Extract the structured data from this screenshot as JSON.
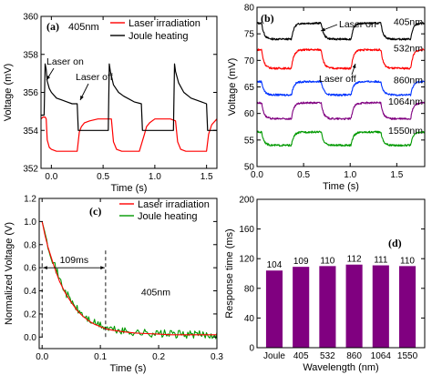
{
  "colors": {
    "black": "#000000",
    "red": "#ff0000",
    "blue": "#0033ff",
    "purple": "#800080",
    "green": "#009900",
    "bar": "#800080"
  },
  "chart_data": [
    {
      "panel": "(a)",
      "type": "line",
      "title": "",
      "xlabel": "Time (s)",
      "ylabel": "Voltage (mV)",
      "xlim": [
        -0.1,
        1.6
      ],
      "ylim": [
        352,
        360
      ],
      "xticks": [
        0.0,
        0.5,
        1.0,
        1.5
      ],
      "xtick_labels": [
        "0.0",
        "0.5",
        "1.0",
        "1.5"
      ],
      "yticks": [
        352,
        354,
        356,
        358,
        360
      ],
      "ytick_labels": [
        "352",
        "354",
        "356",
        "358",
        "360"
      ],
      "legend_position": "top-right",
      "inline_label": "405nm",
      "annotations": [
        "Laser on",
        "Laser off"
      ],
      "series": [
        {
          "name": "Laser irradiation",
          "color": "#ff0000",
          "x": [
            -0.1,
            -0.08,
            -0.06,
            -0.05,
            -0.04,
            -0.02,
            0.0,
            0.05,
            0.1,
            0.15,
            0.2,
            0.25,
            0.27,
            0.29,
            0.32,
            0.37,
            0.45,
            0.52,
            0.58,
            0.6,
            0.63,
            0.68,
            0.75,
            0.85,
            0.9,
            0.92,
            0.95,
            1.0,
            1.07,
            1.15,
            1.2,
            1.22,
            1.25,
            1.3,
            1.4,
            1.5,
            1.52,
            1.55,
            1.6
          ],
          "y": [
            354.6,
            354.7,
            354.7,
            354.6,
            353.5,
            353.1,
            353.0,
            352.9,
            352.9,
            352.9,
            352.9,
            352.9,
            353.9,
            354.2,
            354.4,
            354.5,
            354.6,
            354.6,
            354.6,
            353.4,
            353.0,
            352.9,
            352.9,
            352.9,
            353.8,
            354.2,
            354.4,
            354.6,
            354.6,
            354.6,
            354.5,
            353.4,
            353.0,
            352.9,
            352.9,
            352.9,
            353.8,
            354.3,
            354.6
          ]
        },
        {
          "name": "Joule heating",
          "color": "#000000",
          "x": [
            -0.1,
            -0.07,
            -0.06,
            -0.05,
            -0.04,
            -0.02,
            0.0,
            0.05,
            0.1,
            0.15,
            0.2,
            0.25,
            0.26,
            0.27,
            0.3,
            0.4,
            0.5,
            0.55,
            0.56,
            0.57,
            0.6,
            0.65,
            0.7,
            0.8,
            0.87,
            0.88,
            0.89,
            0.95,
            1.05,
            1.15,
            1.18,
            1.19,
            1.2,
            1.23,
            1.28,
            1.35,
            1.45,
            1.5,
            1.51,
            1.52,
            1.55,
            1.6
          ],
          "y": [
            354.8,
            354.8,
            357.5,
            357.2,
            356.6,
            356.2,
            356.0,
            355.7,
            355.6,
            355.5,
            355.4,
            355.4,
            354.0,
            354.0,
            354.0,
            354.0,
            354.0,
            354.0,
            357.5,
            357.1,
            356.4,
            356.0,
            355.8,
            355.5,
            355.4,
            354.0,
            354.0,
            354.0,
            354.0,
            354.0,
            354.0,
            357.5,
            357.1,
            356.5,
            356.0,
            355.7,
            355.5,
            355.4,
            354.0,
            354.0,
            354.0,
            354.0
          ]
        }
      ]
    },
    {
      "panel": "(b)",
      "type": "line",
      "title": "",
      "xlabel": "Time (s)",
      "ylabel": "Voltage (mV)",
      "xlim": [
        0.0,
        1.8
      ],
      "ylim": [
        50,
        80
      ],
      "xticks": [
        0.0,
        0.5,
        1.0,
        1.5
      ],
      "xtick_labels": [
        "0.0",
        "0.5",
        "1.0",
        "1.5"
      ],
      "yticks": [
        50,
        55,
        60,
        65,
        70,
        75,
        80
      ],
      "ytick_labels": [
        "50",
        "55",
        "60",
        "65",
        "70",
        "75",
        "80"
      ],
      "annotations": [
        "Laser on",
        "Laser off"
      ],
      "pulse": {
        "period": 0.64,
        "high_start": 0.37,
        "high_end": 0.69
      },
      "series": [
        {
          "name": "405nm",
          "color": "#000000",
          "base": 74.0,
          "amplitude": 3.0
        },
        {
          "name": "532nm",
          "color": "#ff0000",
          "base": 68.5,
          "amplitude": 3.5
        },
        {
          "name": "860nm",
          "color": "#0033ff",
          "base": 63.5,
          "amplitude": 2.5
        },
        {
          "name": "1064nm",
          "color": "#800080",
          "base": 59.0,
          "amplitude": 3.0
        },
        {
          "name": "1550nm",
          "color": "#009900",
          "base": 54.0,
          "amplitude": 2.5
        }
      ]
    },
    {
      "panel": "(c)",
      "type": "line",
      "title": "",
      "xlabel": "Time (s)",
      "ylabel": "Normalized Voltage (V)",
      "xlim": [
        -0.005,
        0.3
      ],
      "ylim": [
        -0.1,
        1.2
      ],
      "xticks": [
        0.0,
        0.1,
        0.2,
        0.3
      ],
      "xtick_labels": [
        "0.0",
        "0.1",
        "0.2",
        "0.3"
      ],
      "yticks": [
        0.0,
        0.2,
        0.4,
        0.6,
        0.8,
        1.0,
        1.2
      ],
      "ytick_labels": [
        "0.0",
        "0.2",
        "0.4",
        "0.6",
        "0.8",
        "1.0",
        "1.2"
      ],
      "legend_position": "top-right",
      "inline_label": "405nm",
      "annotations": [
        "109ms"
      ],
      "marker_lines_x": [
        0.0,
        0.109
      ],
      "arrow_y": 0.6,
      "series": [
        {
          "name": "Laser irradiation",
          "color": "#ff0000",
          "x": [
            0.0,
            0.005,
            0.01,
            0.02,
            0.03,
            0.04,
            0.05,
            0.06,
            0.07,
            0.08,
            0.09,
            0.1,
            0.11,
            0.12,
            0.14,
            0.16,
            0.18,
            0.2,
            0.22,
            0.25,
            0.28,
            0.3
          ],
          "y": [
            1.0,
            0.88,
            0.78,
            0.62,
            0.48,
            0.38,
            0.3,
            0.23,
            0.18,
            0.14,
            0.11,
            0.09,
            0.07,
            0.06,
            0.045,
            0.035,
            0.03,
            0.025,
            0.02,
            0.02,
            0.02,
            0.02
          ]
        },
        {
          "name": "Joule heating",
          "color": "#009900",
          "x": [
            0.0,
            0.005,
            0.01,
            0.02,
            0.03,
            0.04,
            0.05,
            0.06,
            0.07,
            0.08,
            0.09,
            0.1,
            0.11,
            0.12,
            0.14,
            0.16,
            0.18,
            0.2,
            0.22,
            0.25,
            0.28,
            0.3
          ],
          "y": [
            1.0,
            0.9,
            0.8,
            0.64,
            0.5,
            0.39,
            0.31,
            0.24,
            0.19,
            0.15,
            0.12,
            0.1,
            0.08,
            0.065,
            0.05,
            0.04,
            0.035,
            0.03,
            0.025,
            0.022,
            0.02,
            0.02
          ],
          "noise": 0.035
        }
      ]
    },
    {
      "panel": "(d)",
      "type": "bar",
      "title": "",
      "xlabel": "Wavelength (nm)",
      "ylabel": "Response time (ms)",
      "ylim": [
        0,
        200
      ],
      "yticks": [
        0,
        40,
        80,
        120,
        160,
        200
      ],
      "ytick_labels": [
        "0",
        "40",
        "80",
        "120",
        "160",
        "200"
      ],
      "categories": [
        "Joule",
        "405",
        "532",
        "860",
        "1064",
        "1550"
      ],
      "values": [
        104,
        109,
        110,
        112,
        111,
        110
      ],
      "value_labels": [
        "104",
        "109",
        "110",
        "112",
        "111",
        "110"
      ],
      "color": "#800080"
    }
  ]
}
